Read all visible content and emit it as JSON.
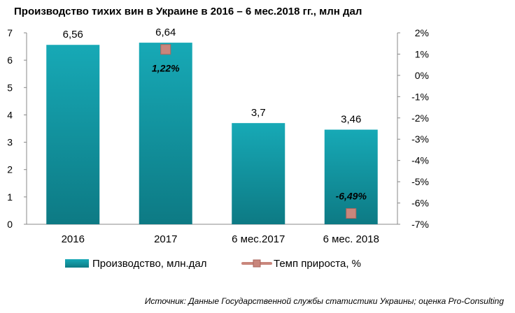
{
  "chart_data": {
    "type": "bar",
    "title": "Производство тихих вин в Украине в 2016 – 6 мес.2018 гг., млн дал",
    "categories": [
      "2016",
      "2017",
      "6 мес.2017",
      "6 мес. 2018"
    ],
    "series": [
      {
        "name": "Производство, млн.дал",
        "type": "bar",
        "axis": "left",
        "values": [
          6.56,
          6.64,
          3.7,
          3.46
        ],
        "labels": [
          "6,56",
          "6,64",
          "3,7",
          "3,46"
        ]
      },
      {
        "name": "Темп прироста, %",
        "type": "scatter",
        "axis": "right",
        "values": [
          null,
          1.22,
          null,
          -6.49
        ],
        "labels": [
          null,
          "1,22%",
          null,
          "-6,49%"
        ]
      }
    ],
    "y_left": {
      "ylim": [
        0,
        7
      ],
      "ticks": [
        "0",
        "1",
        "2",
        "3",
        "4",
        "5",
        "6",
        "7"
      ]
    },
    "y_right": {
      "ylim": [
        -7,
        2
      ],
      "ticks": [
        "2%",
        "1%",
        "0%",
        "-1%",
        "-2%",
        "-3%",
        "-4%",
        "-5%",
        "-6%",
        "-7%"
      ]
    },
    "grid": false,
    "legend_position": "bottom",
    "colors": {
      "bar": "#17a2b0",
      "bar_dark": "#0e7b86",
      "marker": "#c9867c"
    }
  },
  "source_text": "Источник: Данные Государственной службы статистики Украины; оценка Pro-Consulting"
}
